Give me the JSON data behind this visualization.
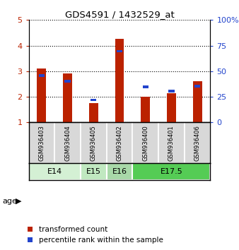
{
  "title": "GDS4591 / 1432529_at",
  "samples": [
    "GSM936403",
    "GSM936404",
    "GSM936405",
    "GSM936402",
    "GSM936400",
    "GSM936401",
    "GSM936406"
  ],
  "transformed_counts": [
    3.1,
    2.9,
    1.75,
    4.27,
    2.0,
    2.15,
    2.62
  ],
  "percentile_ranks_left": [
    2.82,
    2.6,
    1.88,
    3.78,
    2.38,
    2.22,
    2.42
  ],
  "age_groups": [
    {
      "label": "E14",
      "span": [
        0,
        2
      ],
      "color": "#d4f0d4"
    },
    {
      "label": "E15",
      "span": [
        2,
        3
      ],
      "color": "#c0e8c0"
    },
    {
      "label": "E16",
      "span": [
        3,
        4
      ],
      "color": "#a8d8a8"
    },
    {
      "label": "E17.5",
      "span": [
        4,
        7
      ],
      "color": "#55cc55"
    }
  ],
  "ylim_left": [
    1,
    5
  ],
  "ylim_right": [
    0,
    100
  ],
  "yticks_left": [
    1,
    2,
    3,
    4,
    5
  ],
  "yticks_right": [
    0,
    25,
    50,
    75,
    100
  ],
  "yticklabels_right": [
    "0",
    "25",
    "50",
    "75",
    "100%"
  ],
  "bar_color": "#bb2200",
  "percentile_color": "#2244cc",
  "bar_width": 0.35,
  "percentile_marker_size": 5,
  "bg_color": "#d8d8d8",
  "legend_red": "transformed count",
  "legend_blue": "percentile rank within the sample",
  "figsize": [
    3.38,
    3.54
  ],
  "dpi": 100
}
